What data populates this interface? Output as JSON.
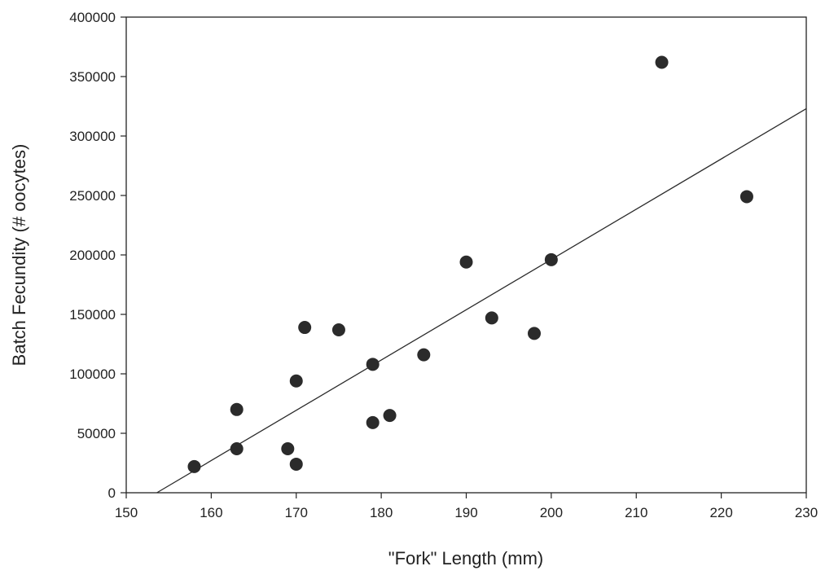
{
  "chart_data": {
    "type": "scatter",
    "title": "",
    "xlabel": "\"Fork\" Length (mm)",
    "ylabel": "Batch Fecundity (# oocytes)",
    "xlim": [
      150,
      230
    ],
    "ylim": [
      0,
      400000
    ],
    "xticks": [
      150,
      160,
      170,
      180,
      190,
      200,
      210,
      220,
      230
    ],
    "yticks": [
      0,
      50000,
      100000,
      150000,
      200000,
      250000,
      300000,
      350000,
      400000
    ],
    "grid": false,
    "colors": {
      "points": "#2b2b2b",
      "line": "#2b2b2b",
      "axes": "#222222"
    },
    "points": [
      {
        "x": 158,
        "y": 22000
      },
      {
        "x": 163,
        "y": 70000
      },
      {
        "x": 163,
        "y": 37000
      },
      {
        "x": 169,
        "y": 37000
      },
      {
        "x": 170,
        "y": 24000
      },
      {
        "x": 170,
        "y": 94000
      },
      {
        "x": 171,
        "y": 139000
      },
      {
        "x": 175,
        "y": 137000
      },
      {
        "x": 179,
        "y": 108000
      },
      {
        "x": 179,
        "y": 59000
      },
      {
        "x": 181,
        "y": 65000
      },
      {
        "x": 185,
        "y": 116000
      },
      {
        "x": 190,
        "y": 194000
      },
      {
        "x": 193,
        "y": 147000
      },
      {
        "x": 198,
        "y": 134000
      },
      {
        "x": 200,
        "y": 196000
      },
      {
        "x": 213,
        "y": 362000
      },
      {
        "x": 223,
        "y": 249000
      }
    ],
    "fit_line": {
      "x": [
        153.6,
        230
      ],
      "y": [
        0,
        323000
      ]
    }
  }
}
